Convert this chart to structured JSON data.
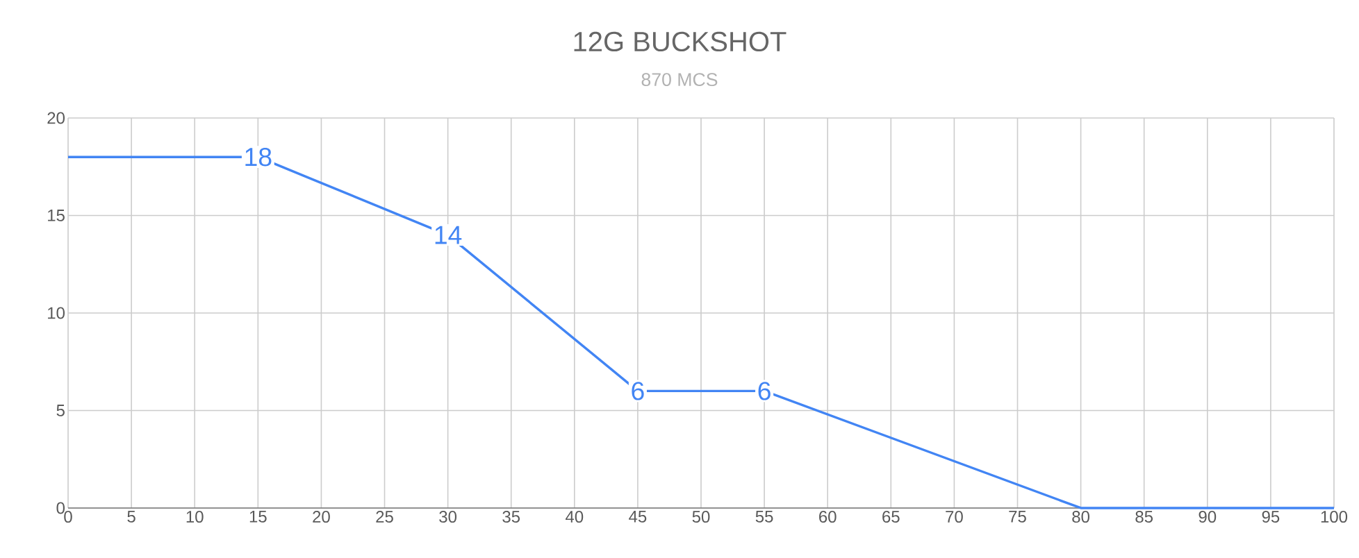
{
  "chart_data": {
    "type": "line",
    "title": "12G BUCKSHOT",
    "subtitle": "870 MCS",
    "x": [
      0,
      15,
      30,
      45,
      55,
      80,
      100
    ],
    "series": [
      {
        "color": "#4285f4",
        "values": [
          18,
          18,
          14,
          6,
          6,
          0,
          0
        ],
        "value_labels": [
          null,
          "18",
          "14",
          "6",
          "6",
          null,
          null
        ]
      }
    ],
    "xlim": [
      0,
      100
    ],
    "xticks": [
      0,
      5,
      10,
      15,
      20,
      25,
      30,
      35,
      40,
      45,
      50,
      55,
      60,
      65,
      70,
      75,
      80,
      85,
      90,
      95,
      100
    ],
    "ylim": [
      0,
      20
    ],
    "yticks": [
      0,
      5,
      10,
      15,
      20
    ],
    "grid": true
  }
}
